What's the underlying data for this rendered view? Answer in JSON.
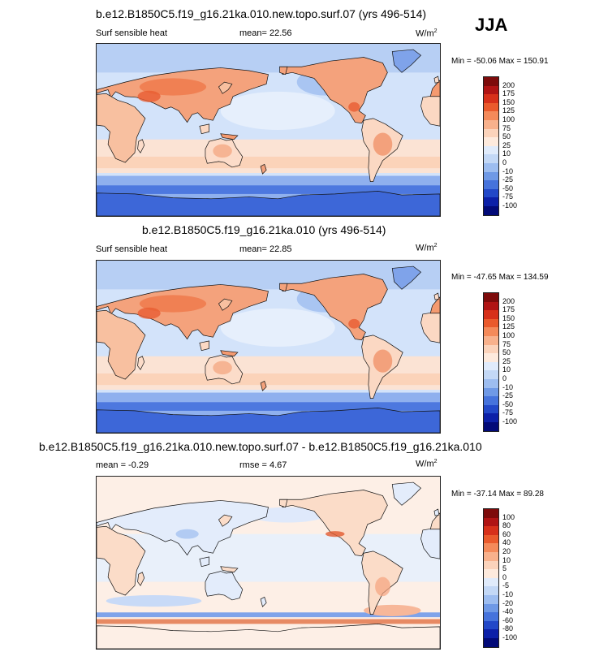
{
  "season": "JJA",
  "panels": [
    {
      "title": "b.e12.B1850C5.f19_g16.21ka.010.new.topo.surf.07 (yrs 496-514)",
      "field": "Surf sensible heat",
      "stat1": "mean=  22.56",
      "stat2": "",
      "units": "W/m",
      "units_exp": "2",
      "minmax": "Min = -50.06 Max = 150.91",
      "levels": [
        "200",
        "175",
        "150",
        "125",
        "100",
        "75",
        "50",
        "25",
        "10",
        "0",
        "-10",
        "-25",
        "-50",
        "-75",
        "-100"
      ],
      "colors": [
        "#7d0b0b",
        "#b01414",
        "#d7301a",
        "#ea5a2c",
        "#f48a5a",
        "#f8b18c",
        "#fbd3bb",
        "#fdeadd",
        "#e0ebfb",
        "#c3d8f6",
        "#9dbdf0",
        "#6f99e6",
        "#4673dc",
        "#2248c8",
        "#0c20a8",
        "#020a78"
      ],
      "mode": "abs"
    },
    {
      "title": "b.e12.B1850C5.f19_g16.21ka.010 (yrs 496-514)",
      "field": "Surf sensible heat",
      "stat1": "mean=  22.85",
      "stat2": "",
      "units": "W/m",
      "units_exp": "2",
      "minmax": "Min = -47.65 Max = 134.59",
      "levels": [
        "200",
        "175",
        "150",
        "125",
        "100",
        "75",
        "50",
        "25",
        "10",
        "0",
        "-10",
        "-25",
        "-50",
        "-75",
        "-100"
      ],
      "colors": [
        "#7d0b0b",
        "#b01414",
        "#d7301a",
        "#ea5a2c",
        "#f48a5a",
        "#f8b18c",
        "#fbd3bb",
        "#fdeadd",
        "#e0ebfb",
        "#c3d8f6",
        "#9dbdf0",
        "#6f99e6",
        "#4673dc",
        "#2248c8",
        "#0c20a8",
        "#020a78"
      ],
      "mode": "abs"
    },
    {
      "title": "b.e12.B1850C5.f19_g16.21ka.010.new.topo.surf.07 - b.e12.B1850C5.f19_g16.21ka.010",
      "field": "",
      "stat1": "mean =  -0.29",
      "stat2": "rmse =   4.67",
      "units": "W/m",
      "units_exp": "2",
      "minmax": "Min = -37.14 Max = 89.28",
      "levels": [
        "100",
        "80",
        "60",
        "40",
        "20",
        "10",
        "5",
        "0",
        "-5",
        "-10",
        "-20",
        "-40",
        "-60",
        "-80",
        "-100"
      ],
      "colors": [
        "#7d0b0b",
        "#b01414",
        "#d7301a",
        "#ea5a2c",
        "#f48a5a",
        "#f8b18c",
        "#fbd3bb",
        "#fdeadd",
        "#e0ebfb",
        "#c3d8f6",
        "#9dbdf0",
        "#6f99e6",
        "#4673dc",
        "#2248c8",
        "#0c20a8",
        "#020a78"
      ],
      "mode": "diff"
    }
  ]
}
